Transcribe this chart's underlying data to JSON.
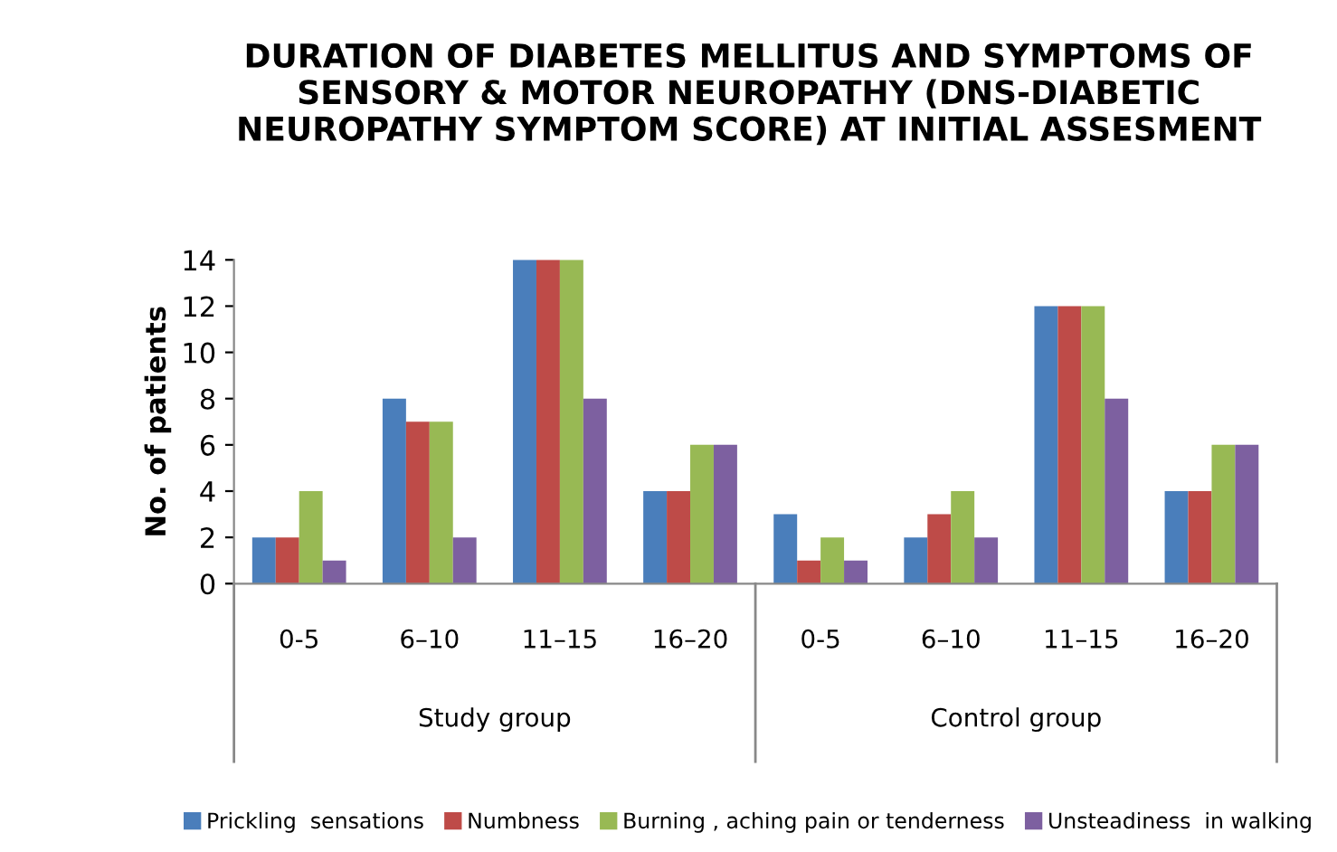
{
  "chart_data": {
    "type": "bar",
    "title": "DURATION OF DIABETES MELLITUS AND SYMPTOMS OF\nSENSORY & MOTOR NEUROPATHY (DNS-DIABETIC\nNEUROPATHY SYMPTOM SCORE) AT INITIAL ASSESMENT",
    "ylabel": "No. of patients",
    "categories": [
      "0-5",
      "6–10",
      "11–15",
      "16–20",
      "0-5",
      "6–10",
      "11–15",
      "16–20"
    ],
    "annotations": [
      "Study group",
      "Control group"
    ],
    "series": [
      {
        "name": "Prickling  sensations",
        "color": "#4a7ebb",
        "values": [
          2,
          8,
          14,
          4,
          3,
          2,
          12,
          4
        ]
      },
      {
        "name": "Numbness",
        "color": "#be4b48",
        "values": [
          2,
          7,
          14,
          4,
          1,
          3,
          12,
          4
        ]
      },
      {
        "name": "Burning , aching pain or tenderness",
        "color": "#98b954",
        "values": [
          4,
          7,
          14,
          6,
          2,
          4,
          12,
          6
        ]
      },
      {
        "name": "Unsteadiness  in walking",
        "color": "#7d60a0",
        "values": [
          1,
          2,
          8,
          6,
          1,
          2,
          8,
          6
        ]
      }
    ],
    "ylim": [
      0,
      14
    ],
    "yticks": [
      0,
      2,
      4,
      6,
      8,
      10,
      12,
      14
    ],
    "grid": false,
    "legend": "bottom"
  }
}
